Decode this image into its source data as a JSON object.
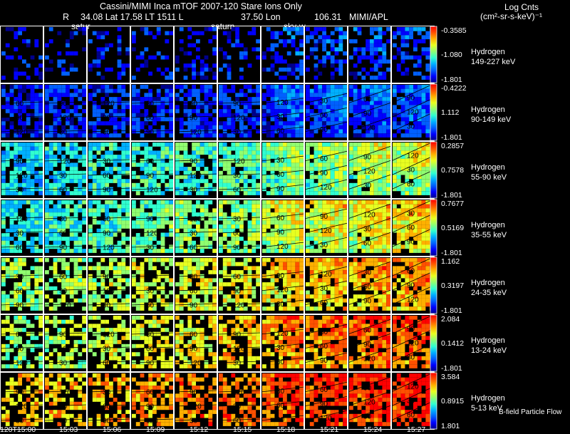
{
  "header": {
    "title": "Cassini/MIMI Inca mTOF  2007-120   Stare    Ions Only",
    "r_label": "R",
    "lat_lt": "34.08 Lat 17.58 LT 1511 L",
    "lon_label": "37.50 Lon",
    "lon_value": "106.31",
    "institution": "MIMI/APL",
    "targets": [
      "satur",
      "saturn",
      "sky-w"
    ]
  },
  "colorbar_units": {
    "line1": "Log Cnts",
    "line2": "(cm²-sr-s-keV)⁻¹"
  },
  "palette": [
    "#00008c",
    "#0000ff",
    "#0060ff",
    "#00b0ff",
    "#30ffd0",
    "#90ff70",
    "#e8ff20",
    "#ffb000",
    "#ff5000",
    "#ff0000"
  ],
  "chart_data": {
    "type": "heatmap",
    "description_title": "Cassini/MIMI Inca mTOF  2007-120   Stare    Ions Only",
    "x": {
      "tick_labels": [
        "120T15:00",
        "15:03",
        "15:06",
        "15:09",
        "15:12",
        "15:15",
        "15:18",
        "15:21",
        "15:24",
        "15:27"
      ]
    },
    "contour_labels": [
      "30",
      "60",
      "90",
      "120"
    ],
    "annotation": "B-field Particle Flow",
    "bands": [
      {
        "species": "Hydrogen",
        "energy": "149-227 keV",
        "cb_max": "-0.3585",
        "cb_mid": "-1.080",
        "cb_min": "-1.801",
        "level_start": 1.0,
        "level_end": 1.3,
        "fill": 0.35,
        "contours": false
      },
      {
        "species": "Hydrogen",
        "energy": "90-149 keV",
        "cb_max": "-0.4222",
        "cb_mid": "1.112",
        "cb_min": "-1.801",
        "level_start": 1.1,
        "level_end": 1.6,
        "fill": 0.8,
        "contours": true
      },
      {
        "species": "Hydrogen",
        "energy": "55-90 keV",
        "cb_max": "0.2857",
        "cb_mid": "0.7578",
        "cb_min": "-1.801",
        "level_start": 3.3,
        "level_end": 5.2,
        "fill": 0.85,
        "contours": true
      },
      {
        "species": "Hydrogen",
        "energy": "35-55 keV",
        "cb_max": "0.7677",
        "cb_mid": "0.5169",
        "cb_min": "-1.801",
        "level_start": 3.6,
        "level_end": 6.2,
        "fill": 0.85,
        "contours": true
      },
      {
        "species": "Hydrogen",
        "energy": "24-35 keV",
        "cb_max": "1.162",
        "cb_mid": "0.3197",
        "cb_min": "-1.801",
        "level_start": 5.0,
        "level_end": 6.9,
        "fill": 0.7,
        "contours": true
      },
      {
        "species": "Hydrogen",
        "energy": "13-24 keV",
        "cb_max": "2.084",
        "cb_mid": "0.1412",
        "cb_min": "-1.801",
        "level_start": 5.0,
        "level_end": 7.9,
        "fill": 0.65,
        "contours": true
      },
      {
        "species": "Hydrogen",
        "energy": "5-13 keV",
        "cb_max": "3.584",
        "cb_mid": "0.8915",
        "cb_min": "1.801",
        "level_start": 6.6,
        "level_end": 8.6,
        "fill": 0.6,
        "contours": true
      }
    ]
  }
}
